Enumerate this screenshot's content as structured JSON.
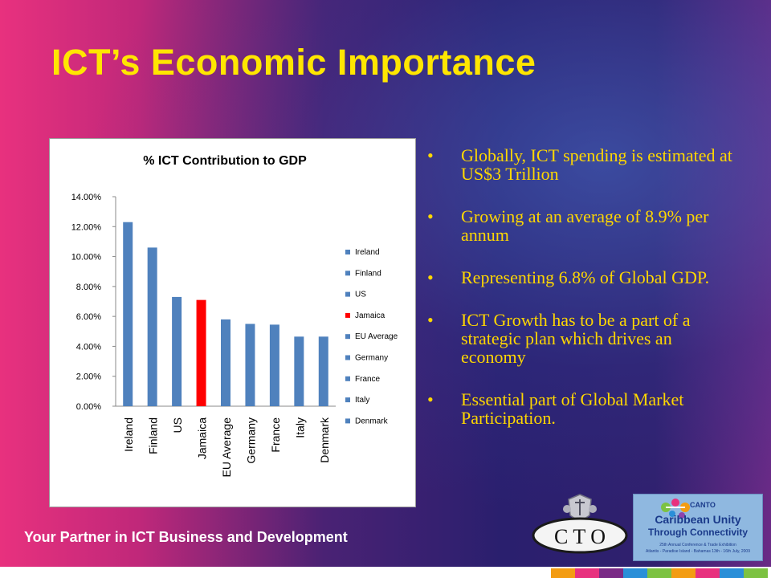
{
  "slide": {
    "title": "ICT’s Economic Importance",
    "tagline": "Your Partner in ICT Business and Development",
    "bullet_marker": "•",
    "bullets": [
      "Globally, ICT spending is estimated at US$3 Trillion",
      "Growing at an average of 8.9% per annum",
      "Representing 6.8% of Global GDP.",
      "ICT Growth has to be a part of a strategic plan which drives an economy",
      "Essential part of Global Market Participation."
    ],
    "cto_logo_text": "C T O",
    "canto_logo": {
      "brand": "CANTO",
      "line1": "Caribbean Unity",
      "line2": "Through Connectivity",
      "caption1": "25th Annual Conference & Trade Exhibition",
      "caption2": "Atlantis - Paradise Island - Bahamas 13th - 16th July, 2009"
    },
    "colors": {
      "title": "#ffe600",
      "bullet_text": "#ffd700",
      "bar_default": "#4f81bd",
      "bar_highlight": "#ff0000"
    }
  },
  "chart_data": {
    "type": "bar",
    "title": "% ICT Contribution to GDP",
    "categories": [
      "Ireland",
      "Finland",
      "US",
      "Jamaica",
      "EU Average",
      "Germany",
      "France",
      "Italy",
      "Denmark"
    ],
    "values": [
      12.3,
      10.6,
      7.3,
      7.1,
      5.8,
      5.5,
      5.45,
      4.65,
      4.65
    ],
    "highlight": "Jamaica",
    "ylim": [
      0,
      14
    ],
    "yticks": [
      "0.00%",
      "2.00%",
      "4.00%",
      "6.00%",
      "8.00%",
      "10.00%",
      "12.00%",
      "14.00%"
    ],
    "grid": false,
    "legend": {
      "placement": "right",
      "entries": [
        "Ireland",
        "Finland",
        "US",
        "Jamaica",
        "EU Average",
        "Germany",
        "France",
        "Italy",
        "Denmark"
      ]
    }
  }
}
